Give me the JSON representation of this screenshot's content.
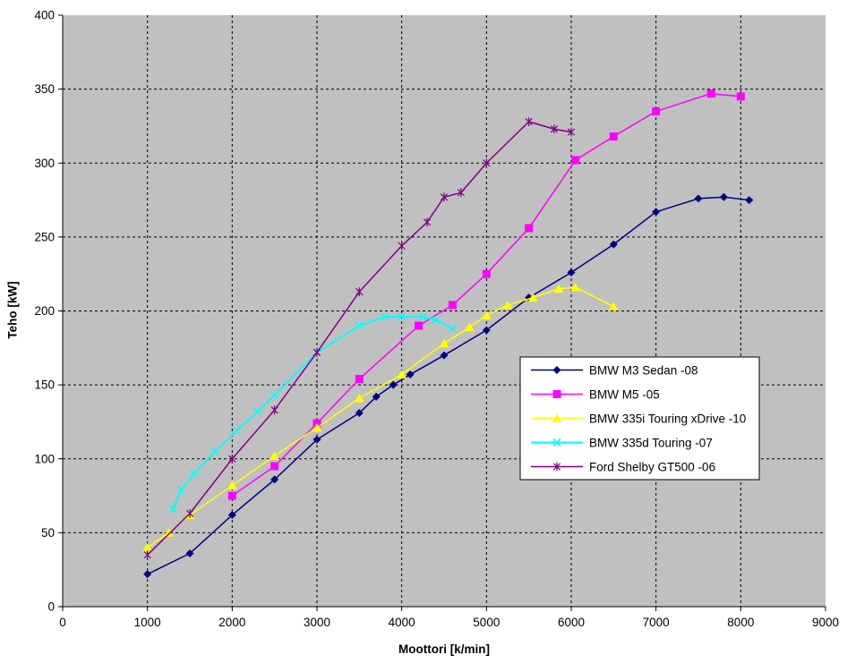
{
  "chart_data": {
    "type": "line",
    "title": "",
    "xlabel": "Moottori [k/min]",
    "ylabel": "Teho [kW]",
    "xlim": [
      0,
      9000
    ],
    "ylim": [
      0,
      400
    ],
    "x_tick_step": 1000,
    "y_tick_step": 50,
    "grid": true,
    "plot_bg_color": "#c0c0c0",
    "grid_color": "#000000",
    "axis_color": "#000000",
    "legend_position": "inside-right",
    "legend_bg": "#ffffff",
    "legend_border": "#000000",
    "series": [
      {
        "name": "BMW M3 Sedan -08",
        "color": "#000080",
        "marker": "diamond",
        "x": [
          1000,
          1500,
          2000,
          2500,
          3000,
          3500,
          3700,
          3900,
          4100,
          4500,
          5000,
          5500,
          6000,
          6500,
          7000,
          7500,
          7800,
          8100
        ],
        "y": [
          22,
          36,
          62,
          86,
          113,
          131,
          142,
          150,
          157,
          170,
          187,
          209,
          226,
          245,
          267,
          276,
          277,
          275
        ]
      },
      {
        "name": "BMW M5 -05",
        "color": "#ff00ff",
        "marker": "square",
        "x": [
          2000,
          2500,
          3000,
          3500,
          4200,
          4600,
          5000,
          5500,
          6050,
          6500,
          7000,
          7650,
          8000
        ],
        "y": [
          75,
          95,
          124,
          154,
          190,
          204,
          225,
          256,
          302,
          318,
          335,
          347,
          345
        ]
      },
      {
        "name": "BMW 335i Touring xDrive -10",
        "color": "#ffff00",
        "marker": "triangle",
        "x": [
          1000,
          1250,
          1500,
          2000,
          2500,
          3000,
          3500,
          4000,
          4500,
          4800,
          5000,
          5250,
          5550,
          5850,
          6050,
          6500
        ],
        "y": [
          40,
          50,
          62,
          82,
          102,
          121,
          141,
          157,
          178,
          189,
          197,
          204,
          209,
          215,
          216,
          203
        ]
      },
      {
        "name": "BMW 335d Touring -07",
        "color": "#00ffff",
        "marker": "x",
        "x": [
          1300,
          1400,
          1550,
          1800,
          2050,
          2300,
          2500,
          3000,
          3500,
          3800,
          4000,
          4250,
          4400,
          4600
        ],
        "y": [
          66,
          79,
          90,
          105,
          119,
          132,
          143,
          172,
          190,
          196,
          196,
          196,
          194,
          188
        ]
      },
      {
        "name": "Ford Shelby GT500 -06",
        "color": "#800080",
        "marker": "asterisk",
        "x": [
          1000,
          1500,
          2000,
          2500,
          3000,
          3500,
          4000,
          4300,
          4500,
          4700,
          5000,
          5500,
          5800,
          6000
        ],
        "y": [
          35,
          63,
          100,
          133,
          172,
          213,
          244,
          260,
          277,
          280,
          300,
          328,
          323,
          321
        ]
      }
    ]
  }
}
